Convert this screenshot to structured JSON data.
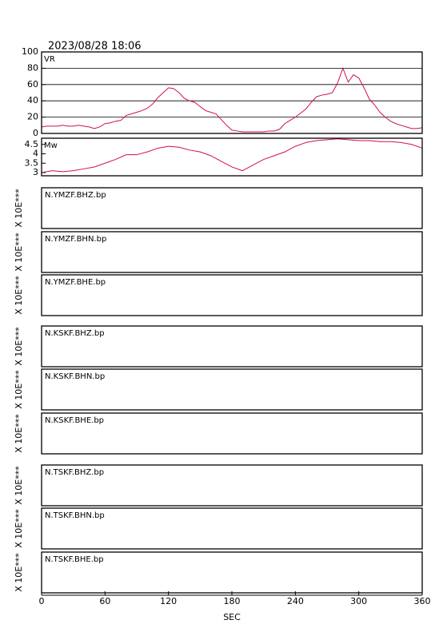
{
  "title": "2023/08/28 18:06",
  "chart_data": [
    {
      "type": "line",
      "name": "VR",
      "color": "#d0104a",
      "xlim": [
        0,
        360
      ],
      "ylim": [
        0,
        100
      ],
      "yticks": [
        0,
        20,
        40,
        60,
        80,
        100
      ],
      "grid": true,
      "x": [
        0,
        5,
        10,
        15,
        20,
        25,
        30,
        35,
        40,
        45,
        50,
        55,
        60,
        65,
        70,
        75,
        80,
        85,
        90,
        95,
        100,
        105,
        110,
        115,
        120,
        125,
        130,
        135,
        140,
        145,
        150,
        155,
        160,
        165,
        170,
        175,
        180,
        185,
        190,
        195,
        200,
        205,
        210,
        215,
        220,
        225,
        230,
        235,
        240,
        245,
        250,
        255,
        260,
        265,
        270,
        275,
        280,
        285,
        290,
        295,
        300,
        305,
        310,
        315,
        320,
        325,
        330,
        335,
        340,
        345,
        350,
        355,
        360
      ],
      "values": [
        8,
        9,
        9,
        9,
        10,
        9,
        9,
        10,
        9,
        8,
        6,
        8,
        12,
        13,
        15,
        16,
        22,
        24,
        26,
        28,
        31,
        36,
        44,
        50,
        56,
        55,
        50,
        43,
        40,
        38,
        33,
        28,
        26,
        24,
        17,
        10,
        4,
        3,
        2,
        2,
        2,
        2,
        2,
        3,
        3,
        5,
        12,
        16,
        20,
        25,
        30,
        38,
        45,
        47,
        48,
        50,
        62,
        80,
        63,
        72,
        68,
        56,
        42,
        35,
        26,
        20,
        15,
        12,
        10,
        8,
        6,
        6,
        7
      ]
    },
    {
      "type": "line",
      "name": "Mw",
      "color": "#d0104a",
      "xlim": [
        0,
        360
      ],
      "ylim": [
        2.83,
        4.83
      ],
      "yticks": [
        3.0,
        3.5,
        4.0,
        4.5
      ],
      "grid": false,
      "x": [
        0,
        10,
        20,
        30,
        40,
        50,
        60,
        70,
        80,
        90,
        100,
        110,
        120,
        130,
        140,
        150,
        160,
        170,
        180,
        190,
        200,
        210,
        220,
        230,
        240,
        250,
        260,
        270,
        280,
        290,
        300,
        310,
        320,
        330,
        340,
        350,
        360
      ],
      "values": [
        3.0,
        3.1,
        3.05,
        3.1,
        3.2,
        3.3,
        3.5,
        3.7,
        3.95,
        3.95,
        4.1,
        4.3,
        4.4,
        4.35,
        4.2,
        4.1,
        3.9,
        3.6,
        3.3,
        3.1,
        3.4,
        3.7,
        3.9,
        4.1,
        4.4,
        4.6,
        4.7,
        4.75,
        4.8,
        4.75,
        4.7,
        4.7,
        4.65,
        4.65,
        4.6,
        4.5,
        4.3
      ]
    }
  ],
  "waveforms": [
    {
      "label": "N.YMZF.BHZ.bp",
      "scale": "X 10E***"
    },
    {
      "label": "N.YMZF.BHN.bp",
      "scale": "X 10E***"
    },
    {
      "label": "N.YMZF.BHE.bp",
      "scale": "X 10E***"
    },
    {
      "label": "N.KSKF.BHZ.bp",
      "scale": "X 10E***"
    },
    {
      "label": "N.KSKF.BHN.bp",
      "scale": "X 10E***"
    },
    {
      "label": "N.KSKF.BHE.bp",
      "scale": "X 10E***"
    },
    {
      "label": "N.TSKF.BHZ.bp",
      "scale": "X 10E***"
    },
    {
      "label": "N.TSKF.BHN.bp",
      "scale": "X 10E***"
    },
    {
      "label": "N.TSKF.BHE.bp",
      "scale": "X 10E***"
    }
  ],
  "time_axis": {
    "label": "SEC",
    "xlim": [
      0,
      360
    ],
    "xticks": [
      0,
      60,
      120,
      180,
      240,
      300,
      360
    ]
  }
}
